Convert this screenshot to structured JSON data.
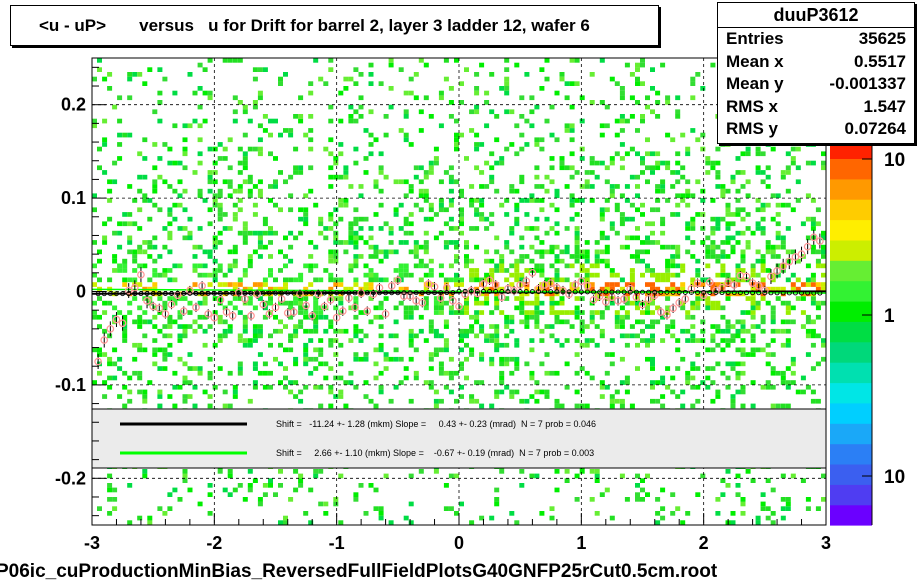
{
  "title": "<u - uP>       versus   u for Drift for barrel 2, layer 3 ladder 12, wafer 6",
  "stats": {
    "name": "duuP3612",
    "rows": [
      {
        "label": "Entries",
        "value": "35625"
      },
      {
        "label": "Mean x",
        "value": "0.5517"
      },
      {
        "label": "Mean y",
        "value": "-0.001337"
      },
      {
        "label": "RMS x",
        "value": "1.547"
      },
      {
        "label": "RMS y",
        "value": "0.07264"
      }
    ]
  },
  "legend": {
    "entries": [
      {
        "color": "#000000",
        "text": "Shift =   -11.24 +- 1.28 (mkm) Slope =     0.43 +- 0.23 (mrad)  N = 7 prob = 0.046"
      },
      {
        "color": "#00ff00",
        "text": "Shift =     2.66 +- 1.10 (mkm) Slope =    -0.67 +- 0.19 (mrad)  N = 7 prob = 0.003"
      }
    ]
  },
  "footer": "P06ic_cuProductionMinBias_ReversedFullFieldPlotsG40GNFP25rCut0.5cm.root",
  "colors": {
    "palette": [
      "#6b00ff",
      "#4f3df2",
      "#3b5ff0",
      "#2b7ff5",
      "#1aa8f8",
      "#00cfff",
      "#00e6e6",
      "#00e0b0",
      "#00d87a",
      "#00dd44",
      "#00ee00",
      "#33f233",
      "#66ee33",
      "#ccee00",
      "#ffee00",
      "#ffcc00",
      "#ff9900",
      "#ff6600",
      "#ff2200"
    ],
    "marker": "#ff9999"
  },
  "chart_data": {
    "type": "heatmap",
    "xlim": [
      -3,
      3
    ],
    "ylim": [
      -0.25,
      0.25
    ],
    "x_ticks": [
      "-3",
      "-2",
      "-1",
      "0",
      "1",
      "2",
      "3"
    ],
    "y_ticks": [
      "-0.2",
      "-0.1",
      "0",
      "0.1",
      "0.2"
    ],
    "colorbar_ticks": [
      "10",
      "1",
      "10"
    ],
    "grid": true,
    "profile": {
      "x": [
        -2.95,
        -2.9,
        -2.85,
        -2.8,
        -2.75,
        -2.7,
        -2.65,
        -2.6,
        -2.55,
        -2.5,
        -2.45,
        -2.4,
        -2.35,
        -2.3,
        -2.25,
        -2.2,
        -2.15,
        -2.1,
        -2.05,
        -2.0,
        -1.95,
        -1.9,
        -1.85,
        -1.8,
        -1.75,
        -1.7,
        -1.65,
        -1.6,
        -1.55,
        -1.5,
        -1.45,
        -1.4,
        -1.35,
        -1.3,
        -1.25,
        -1.2,
        -1.15,
        -1.1,
        -1.05,
        -1.0,
        -0.95,
        -0.9,
        -0.85,
        -0.8,
        -0.75,
        -0.7,
        -0.65,
        -0.6,
        -0.55,
        -0.5,
        -0.45,
        -0.4,
        -0.35,
        -0.3,
        -0.25,
        -0.2,
        -0.15,
        -0.1,
        -0.05,
        0.0,
        0.05,
        0.1,
        0.15,
        0.2,
        0.25,
        0.3,
        0.35,
        0.4,
        0.45,
        0.5,
        0.55,
        0.6,
        0.65,
        0.7,
        0.75,
        0.8,
        0.85,
        0.9,
        0.95,
        1.0,
        1.05,
        1.1,
        1.15,
        1.2,
        1.25,
        1.3,
        1.35,
        1.4,
        1.45,
        1.5,
        1.55,
        1.6,
        1.65,
        1.7,
        1.75,
        1.8,
        1.85,
        1.9,
        1.95,
        2.0,
        2.05,
        2.1,
        2.15,
        2.2,
        2.25,
        2.3,
        2.35,
        2.4,
        2.45,
        2.5,
        2.55,
        2.6,
        2.65,
        2.7,
        2.75,
        2.8,
        2.85,
        2.9,
        2.95
      ],
      "y": [
        -0.075,
        -0.052,
        -0.04,
        -0.03,
        -0.034,
        0.001,
        0.004,
        0.018,
        -0.01,
        -0.016,
        -0.018,
        -0.024,
        -0.014,
        -0.004,
        -0.021,
        0.001,
        -0.017,
        0.006,
        -0.024,
        -0.028,
        -0.009,
        -0.022,
        -0.026,
        -0.001,
        -0.008,
        -0.026,
        -0.003,
        -0.014,
        -0.024,
        -0.017,
        -0.008,
        -0.023,
        -0.022,
        -0.003,
        -0.015,
        -0.026,
        -0.003,
        -0.016,
        -0.009,
        -0.028,
        -0.021,
        -0.007,
        -0.017,
        -0.002,
        -0.021,
        -0.003,
        0.004,
        -0.024,
        0.006,
        0.012,
        -0.005,
        -0.005,
        -0.01,
        -0.012,
        0.008,
        0.005,
        -0.007,
        0.004,
        -0.01,
        -0.016,
        -0.003,
        0.001,
        -0.002,
        0.008,
        0.012,
        0.007,
        -0.006,
        0.003,
        0.001,
        0.007,
        0.011,
        0.02,
        0.003,
        0.007,
        0.009,
        0.004,
        0.001,
        -0.003,
        0.007,
        0.011,
        0.006,
        -0.009,
        -0.005,
        -0.011,
        -0.006,
        -0.01,
        -0.008,
        0.003,
        -0.006,
        -0.014,
        -0.008,
        -0.004,
        -0.022,
        -0.025,
        -0.018,
        -0.012,
        -0.008,
        0.003,
        0.009,
        -0.004,
        0.01,
        0.001,
        0.004,
        0.01,
        0.007,
        0.017,
        0.016,
        0.009,
        0.006,
        0.001,
        0.016,
        0.022,
        0.027,
        0.032,
        0.037,
        0.04,
        0.048,
        0.058,
        0.054
      ]
    },
    "fit_lines": [
      {
        "color": "#000000",
        "shift_mkm": -11.24,
        "slope_mrad": 0.43
      },
      {
        "color": "#00ff00",
        "shift_mkm": 2.66,
        "slope_mrad": -0.67
      }
    ]
  }
}
